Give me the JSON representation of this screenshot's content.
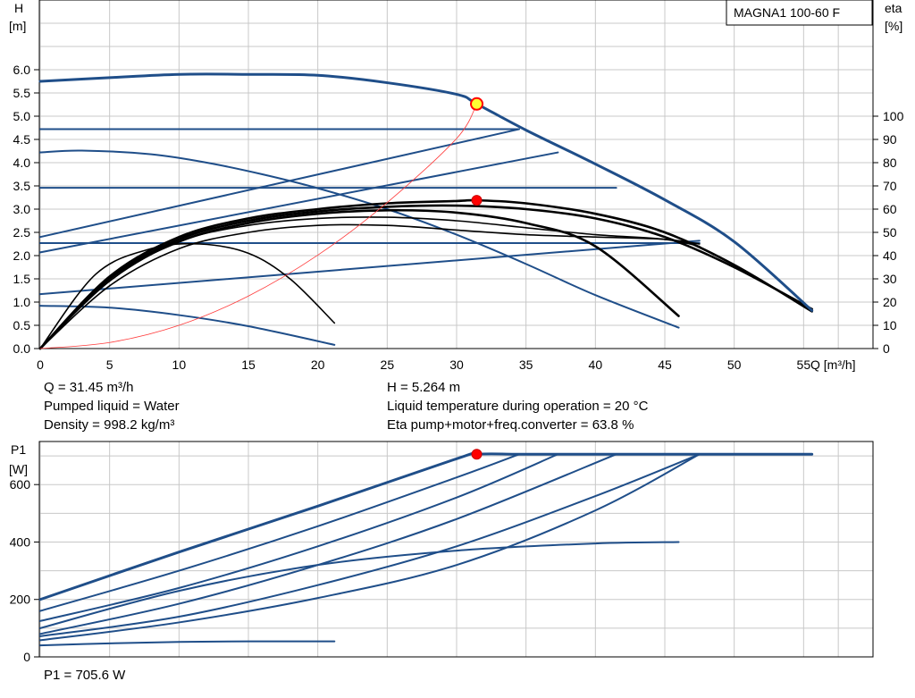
{
  "colors": {
    "curve_blue": "#1f4e89",
    "curve_black": "#000000",
    "grid": "#c8c8c8",
    "system_curve": "#ff3b3b",
    "duty_marker": "#ff0000",
    "duty_marker_yellow": "#ffff33"
  },
  "title_box": "MAGNA1 100-60 F",
  "info": {
    "q": "Q = 31.45 m³/h",
    "h": "H = 5.264 m",
    "liquid": "Pumped liquid = Water",
    "temperature": "Liquid temperature during operation = 20 °C",
    "density": "Density = 998.2 kg/m³",
    "eta": "Eta pump+motor+freq.converter = 63.8 %",
    "p1": "P1 = 705.6 W"
  },
  "chart_data": [
    {
      "type": "line",
      "ylabel_line1": "H",
      "ylabel_line2": "[m]",
      "y2label_line1": "eta",
      "y2label_line2": "[%]",
      "xlabel": "Q [m³/h]",
      "xlim": [
        0,
        60
      ],
      "ylim": [
        0,
        7.5
      ],
      "y2lim": [
        0,
        150
      ],
      "x_ticks": [
        "0",
        "5",
        "10",
        "15",
        "20",
        "25",
        "30",
        "35",
        "40",
        "45",
        "50",
        "55"
      ],
      "y_ticks": [
        "0.0",
        "0.5",
        "1.0",
        "1.5",
        "2.0",
        "2.5",
        "3.0",
        "3.5",
        "4.0",
        "4.5",
        "5.0",
        "5.5",
        "6.0"
      ],
      "y2_ticks": [
        "0",
        "10",
        "20",
        "30",
        "40",
        "50",
        "60",
        "70",
        "80",
        "90",
        "100"
      ],
      "grid": true,
      "head_curves_max": [
        {
          "x": [
            0,
            5,
            10,
            15,
            20,
            25,
            30,
            31.45,
            35,
            40,
            45,
            50,
            55.6
          ],
          "y": [
            5.75,
            5.83,
            5.9,
            5.9,
            5.88,
            5.72,
            5.47,
            5.264,
            4.7,
            3.97,
            3.2,
            2.3,
            0.82
          ]
        }
      ],
      "head_curves_constant_pressure": [
        {
          "x": [
            0,
            34.5
          ],
          "y": [
            4.72,
            4.72
          ]
        },
        {
          "x": [
            0,
            41.5
          ],
          "y": [
            3.46,
            3.46
          ]
        },
        {
          "x": [
            0,
            47.5
          ],
          "y": [
            2.27,
            2.27
          ]
        }
      ],
      "head_curves_proportional": [
        {
          "x": [
            0,
            34.5
          ],
          "y": [
            2.4,
            4.72
          ]
        },
        {
          "x": [
            0,
            37.3
          ],
          "y": [
            2.07,
            4.22
          ]
        },
        {
          "x": [
            0,
            47.5
          ],
          "y": [
            1.17,
            2.32
          ]
        }
      ],
      "head_curves_min": [
        {
          "x": [
            0,
            3,
            8,
            12,
            16,
            20,
            25,
            30,
            35,
            40,
            46
          ],
          "y": [
            4.22,
            4.26,
            4.18,
            4.0,
            3.75,
            3.45,
            3.0,
            2.45,
            1.82,
            1.15,
            0.45
          ]
        },
        {
          "x": [
            0,
            5,
            10,
            15,
            21.2
          ],
          "y": [
            0.92,
            0.88,
            0.72,
            0.48,
            0.08
          ]
        }
      ],
      "eta_curves": [
        {
          "x": [
            0,
            5,
            10,
            15,
            20,
            25,
            30,
            31.45,
            35,
            40,
            45,
            50,
            55.6
          ],
          "y": [
            0,
            31,
            48,
            56,
            60,
            62.5,
            63.5,
            63.8,
            62.5,
            58,
            50,
            36,
            16
          ]
        },
        {
          "x": [
            0,
            5,
            10,
            15,
            20,
            25,
            30,
            35,
            40,
            45,
            50,
            55.6
          ],
          "y": [
            0,
            30,
            47,
            55,
            59,
            61,
            61.5,
            60,
            56,
            48,
            35,
            17
          ]
        },
        {
          "x": [
            0,
            5,
            10,
            15,
            20,
            25,
            30,
            35,
            40,
            46
          ],
          "y": [
            0,
            30,
            46,
            54,
            58,
            59.5,
            58.5,
            54,
            44,
            14
          ]
        },
        {
          "x": [
            0,
            5,
            10,
            15,
            20,
            25,
            30,
            35,
            40,
            45,
            47.5
          ],
          "y": [
            0,
            29,
            46,
            53,
            56,
            56.5,
            55,
            52,
            49,
            47,
            44
          ]
        },
        {
          "x": [
            0,
            5,
            10,
            15,
            20,
            25,
            30,
            35,
            40,
            45,
            47.5
          ],
          "y": [
            0,
            27,
            43,
            50,
            53,
            53,
            51,
            49,
            48,
            47,
            45
          ]
        },
        {
          "x": [
            0,
            4,
            8,
            11.5,
            15,
            18,
            21.2
          ],
          "y": [
            0,
            32,
            43,
            45,
            41,
            30,
            11
          ]
        }
      ],
      "system_curve": {
        "x": [
          0,
          5,
          10,
          15,
          20,
          25,
          30,
          31.45
        ],
        "y": [
          0,
          0.13,
          0.5,
          1.13,
          2.01,
          3.14,
          4.52,
          5.264
        ]
      },
      "duty_point": {
        "x": 31.45,
        "y": 5.264
      },
      "eta_point": {
        "x": 31.45,
        "y": 63.8
      }
    },
    {
      "type": "line",
      "ylabel_line1": "P1",
      "ylabel_line2": "[W]",
      "xlim": [
        0,
        60
      ],
      "ylim": [
        0,
        750
      ],
      "y_ticks": [
        "0",
        "200",
        "400",
        "600"
      ],
      "grid": true,
      "power_curves": [
        {
          "x": [
            0,
            10,
            20,
            30,
            31.45,
            35,
            40,
            45,
            50,
            55.6
          ],
          "y": [
            200,
            365,
            525,
            690,
            705.6,
            705.6,
            705.6,
            705.6,
            705.6,
            705.6
          ]
        },
        {
          "x": [
            0,
            10,
            20,
            30,
            34.5
          ],
          "y": [
            160,
            300,
            455,
            625,
            705.6
          ]
        },
        {
          "x": [
            0,
            10,
            20,
            30,
            37.3
          ],
          "y": [
            125,
            240,
            385,
            555,
            705.6
          ]
        },
        {
          "x": [
            0,
            10,
            20,
            30,
            41.5
          ],
          "y": [
            80,
            185,
            320,
            480,
            705.6
          ]
        },
        {
          "x": [
            0,
            10,
            20,
            30,
            40,
            47.5
          ],
          "y": [
            72,
            140,
            250,
            385,
            560,
            705.6
          ]
        },
        {
          "x": [
            0,
            10,
            20,
            30,
            40,
            47.5
          ],
          "y": [
            58,
            120,
            205,
            320,
            510,
            705.6
          ]
        },
        {
          "x": [
            0,
            10,
            20,
            30,
            40,
            46
          ],
          "y": [
            100,
            230,
            320,
            370,
            395,
            400
          ]
        },
        {
          "x": [
            0,
            5,
            10,
            15,
            21.2
          ],
          "y": [
            40,
            47,
            52,
            54,
            54
          ]
        }
      ],
      "duty_point": {
        "x": 31.45,
        "y": 705.6
      }
    }
  ]
}
